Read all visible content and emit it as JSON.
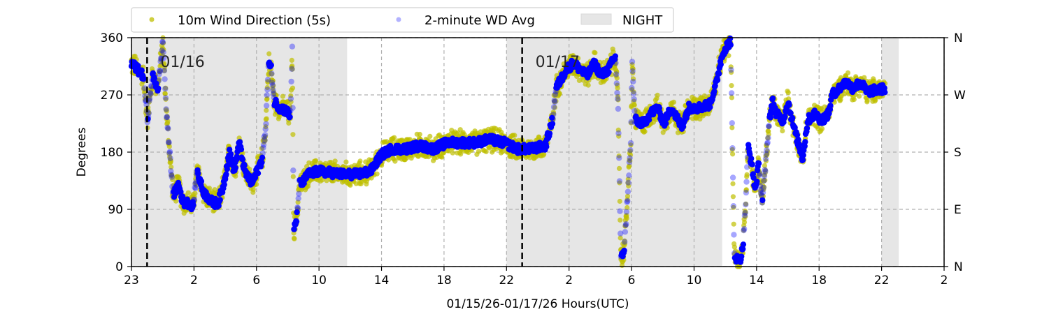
{
  "chart_data": {
    "type": "scatter",
    "xlabel": "01/15/26-01/17/26  Hours(UTC)",
    "ylabel": "Degrees",
    "x_units": "hours relative to 01/16 00:00 (UTC)",
    "xlim": [
      -2,
      50
    ],
    "ylim": [
      0,
      360
    ],
    "grid": true,
    "legend_placement": "top-center-above",
    "x_ticks": [
      {
        "value": -2,
        "label": "23"
      },
      {
        "value": 2,
        "label": "2"
      },
      {
        "value": 6,
        "label": "6"
      },
      {
        "value": 10,
        "label": "10"
      },
      {
        "value": 14,
        "label": "14"
      },
      {
        "value": 18,
        "label": "18"
      },
      {
        "value": 22,
        "label": "22"
      },
      {
        "value": 26,
        "label": "2"
      },
      {
        "value": 30,
        "label": "6"
      },
      {
        "value": 34,
        "label": "10"
      },
      {
        "value": 38,
        "label": "14"
      },
      {
        "value": 42,
        "label": "18"
      },
      {
        "value": 46,
        "label": "22"
      },
      {
        "value": 50,
        "label": "2"
      }
    ],
    "y_ticks": [
      {
        "value": 0,
        "label": "0"
      },
      {
        "value": 90,
        "label": "90"
      },
      {
        "value": 180,
        "label": "180"
      },
      {
        "value": 270,
        "label": "270"
      },
      {
        "value": 360,
        "label": "360"
      }
    ],
    "y2_ticks": [
      {
        "value": 0,
        "label": "N"
      },
      {
        "value": 90,
        "label": "E"
      },
      {
        "value": 180,
        "label": "S"
      },
      {
        "value": 270,
        "label": "W"
      },
      {
        "value": 360,
        "label": "N"
      }
    ],
    "date_lines": [
      {
        "value": -1,
        "label": "01/16"
      },
      {
        "value": 23,
        "label": "01/17"
      }
    ],
    "night_spans": [
      [
        -2,
        11.8
      ],
      [
        22,
        35.8
      ],
      [
        46,
        47.1
      ]
    ],
    "legend": {
      "wd_5s": "10m Wind Direction (5s)",
      "wd_avg": "2-minute WD Avg",
      "night": "NIGHT"
    },
    "series": [
      {
        "name": "10m Wind Direction (5s)",
        "color": "#bfbf00",
        "spread_deg": 22
      },
      {
        "name": "2-minute WD Avg",
        "color": "#0000ff",
        "spread_deg": 7
      }
    ],
    "trace": [
      [
        -2.0,
        320
      ],
      [
        -1.24,
        300
      ],
      [
        -0.97,
        230
      ],
      [
        -0.66,
        300
      ],
      [
        -0.3,
        280
      ],
      [
        0.01,
        355
      ],
      [
        0.24,
        240
      ],
      [
        0.51,
        160
      ],
      [
        0.68,
        110
      ],
      [
        1.0,
        130
      ],
      [
        1.31,
        100
      ],
      [
        1.67,
        100
      ],
      [
        1.94,
        95
      ],
      [
        2.21,
        150
      ],
      [
        2.56,
        120
      ],
      [
        2.83,
        110
      ],
      [
        3.23,
        100
      ],
      [
        3.55,
        100
      ],
      [
        3.91,
        130
      ],
      [
        4.26,
        180
      ],
      [
        4.58,
        150
      ],
      [
        4.89,
        195
      ],
      [
        5.25,
        150
      ],
      [
        5.7,
        130
      ],
      [
        6.05,
        150
      ],
      [
        6.37,
        170
      ],
      [
        6.59,
        220
      ],
      [
        6.77,
        320
      ],
      [
        6.95,
        310
      ],
      [
        7.13,
        260
      ],
      [
        7.49,
        250
      ],
      [
        7.93,
        245
      ],
      [
        8.16,
        235
      ],
      [
        8.29,
        340
      ],
      [
        8.38,
        55
      ],
      [
        8.6,
        80
      ],
      [
        8.74,
        130
      ],
      [
        8.92,
        130
      ],
      [
        9.28,
        145
      ],
      [
        9.95,
        150
      ],
      [
        10.62,
        148
      ],
      [
        11.51,
        145
      ],
      [
        12.41,
        145
      ],
      [
        13.3,
        150
      ],
      [
        13.97,
        175
      ],
      [
        14.64,
        185
      ],
      [
        15.54,
        185
      ],
      [
        16.43,
        190
      ],
      [
        17.33,
        185
      ],
      [
        18.22,
        195
      ],
      [
        19.12,
        195
      ],
      [
        20.01,
        195
      ],
      [
        20.91,
        200
      ],
      [
        21.8,
        195
      ],
      [
        22.7,
        185
      ],
      [
        23.59,
        185
      ],
      [
        24.49,
        190
      ],
      [
        24.94,
        230
      ],
      [
        25.16,
        280
      ],
      [
        25.38,
        290
      ],
      [
        25.83,
        310
      ],
      [
        26.28,
        320
      ],
      [
        26.72,
        310
      ],
      [
        27.17,
        300
      ],
      [
        27.62,
        320
      ],
      [
        28.07,
        300
      ],
      [
        28.51,
        310
      ],
      [
        28.96,
        330
      ],
      [
        29.14,
        250
      ],
      [
        29.32,
        10
      ],
      [
        29.54,
        30
      ],
      [
        29.72,
        100
      ],
      [
        29.86,
        160
      ],
      [
        29.95,
        190
      ],
      [
        30.04,
        320
      ],
      [
        30.22,
        230
      ],
      [
        30.75,
        225
      ],
      [
        31.2,
        240
      ],
      [
        31.65,
        250
      ],
      [
        32.09,
        225
      ],
      [
        32.54,
        250
      ],
      [
        33.21,
        220
      ],
      [
        33.66,
        250
      ],
      [
        34.33,
        250
      ],
      [
        35.0,
        255
      ],
      [
        35.45,
        290
      ],
      [
        35.67,
        320
      ],
      [
        35.9,
        340
      ],
      [
        36.34,
        355
      ],
      [
        36.57,
        20
      ],
      [
        36.79,
        10
      ],
      [
        37.02,
        15
      ],
      [
        37.15,
        40
      ],
      [
        37.28,
        90
      ],
      [
        37.46,
        190
      ],
      [
        37.69,
        160
      ],
      [
        37.91,
        120
      ],
      [
        38.13,
        160
      ],
      [
        38.36,
        100
      ],
      [
        38.58,
        160
      ],
      [
        38.81,
        230
      ],
      [
        39.03,
        260
      ],
      [
        39.25,
        240
      ],
      [
        39.7,
        230
      ],
      [
        40.01,
        260
      ],
      [
        40.37,
        220
      ],
      [
        40.95,
        170
      ],
      [
        41.27,
        230
      ],
      [
        41.71,
        240
      ],
      [
        42.16,
        230
      ],
      [
        42.61,
        240
      ],
      [
        42.83,
        270
      ],
      [
        43.28,
        280
      ],
      [
        43.73,
        290
      ],
      [
        44.18,
        280
      ],
      [
        44.62,
        290
      ],
      [
        45.07,
        275
      ],
      [
        46.24,
        280
      ]
    ]
  }
}
